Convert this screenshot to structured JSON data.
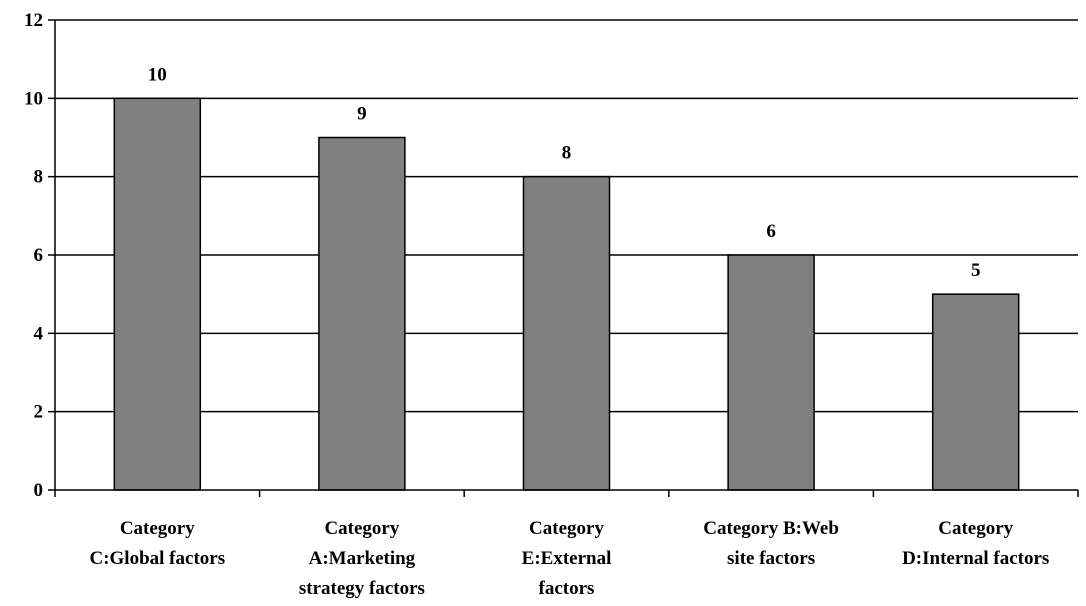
{
  "chart_data": {
    "type": "bar",
    "categories": [
      [
        "Category",
        "C:Global factors"
      ],
      [
        "Category",
        "A:Marketing",
        "strategy factors"
      ],
      [
        "Category",
        "E:External",
        "factors"
      ],
      [
        "Category B:Web",
        "site factors"
      ],
      [
        "Category",
        "D:Internal factors"
      ]
    ],
    "values": [
      10,
      9,
      8,
      6,
      5
    ],
    "data_labels": [
      "10",
      "9",
      "8",
      "6",
      "5"
    ],
    "ylim": [
      0,
      12
    ],
    "yticks": [
      0,
      2,
      4,
      6,
      8,
      10,
      12
    ],
    "ytick_labels": [
      "0",
      "2",
      "4",
      "6",
      "8",
      "10",
      "12"
    ],
    "grid": true,
    "legend": "none",
    "bar_color": "#808080",
    "bar_edge_color": "#000000",
    "title": "",
    "xlabel": "",
    "ylabel": ""
  }
}
